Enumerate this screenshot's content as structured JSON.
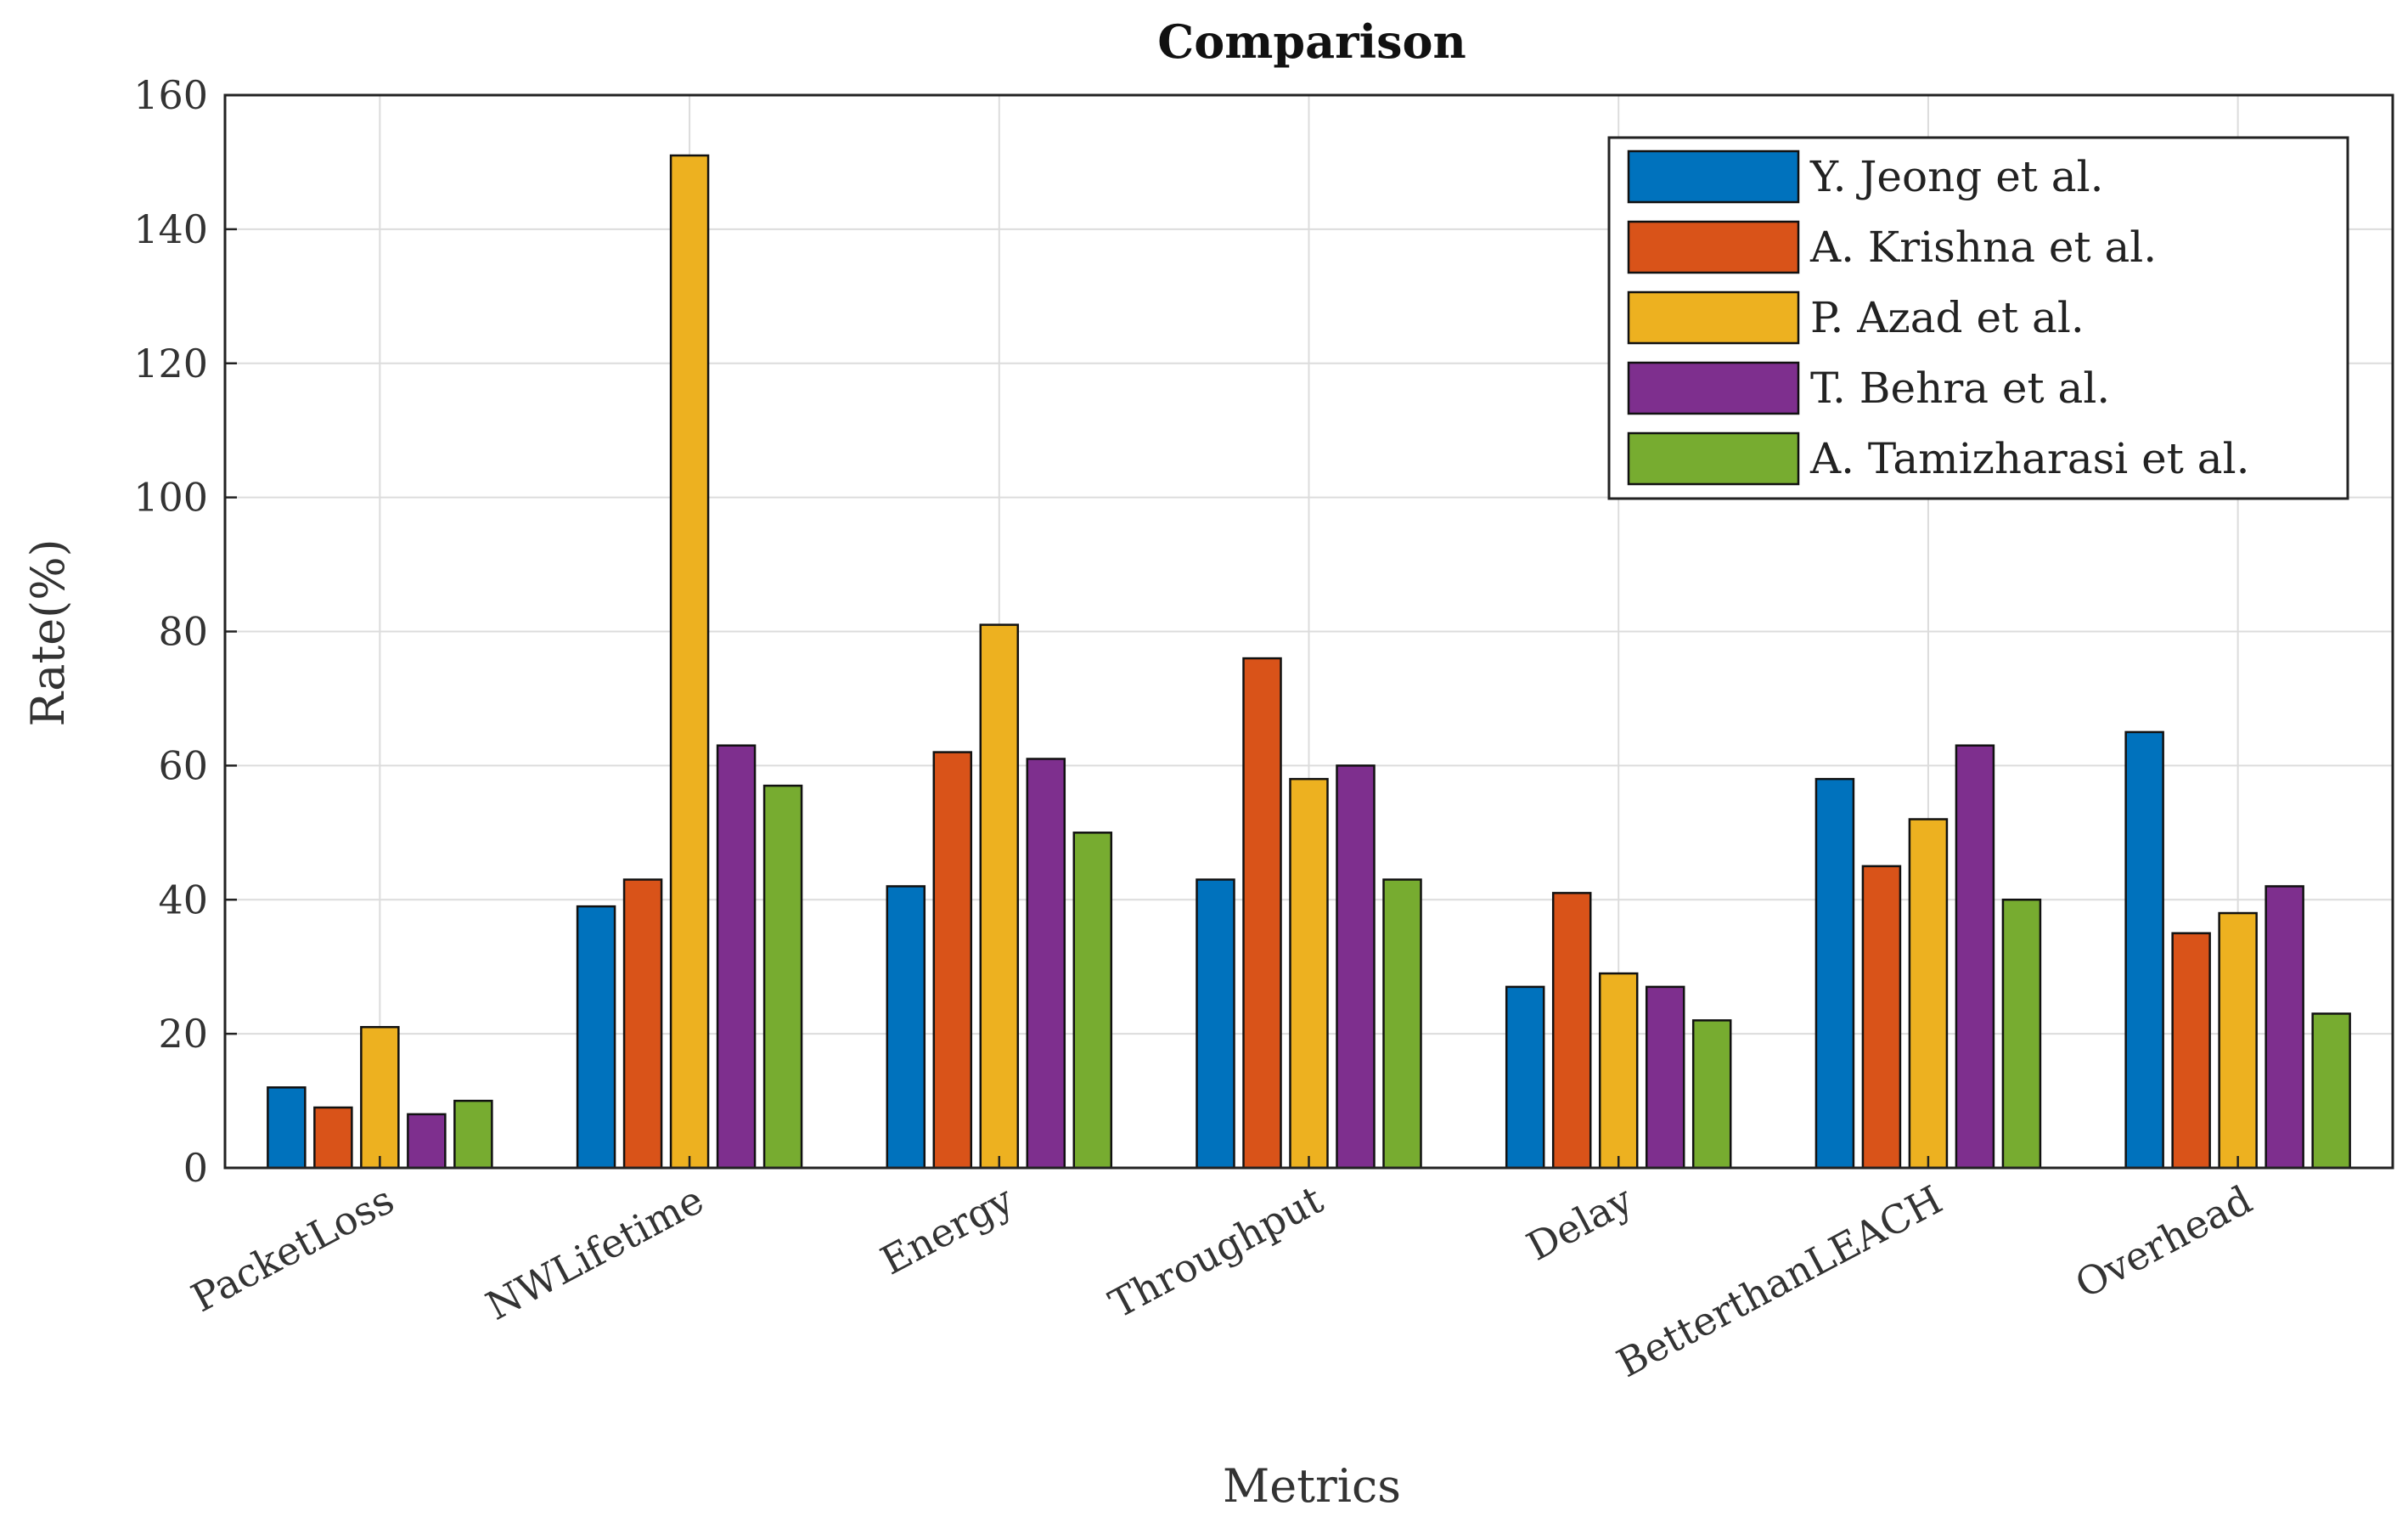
{
  "chart_data": {
    "type": "bar",
    "title": "Comparison",
    "xlabel": "Metrics",
    "ylabel": "Rate(%)",
    "ylim": [
      0,
      160
    ],
    "yticks": [
      0,
      20,
      40,
      60,
      80,
      100,
      120,
      140,
      160
    ],
    "grid": true,
    "legend_position": "top-right",
    "categories": [
      "PacketLoss",
      "NWLifetime",
      "Energy",
      "Throughput",
      "Delay",
      "BetterthanLEACH",
      "Overhead"
    ],
    "series": [
      {
        "name": "Y. Jeong et al.",
        "color": "#0072BD",
        "values": [
          12,
          39,
          42,
          43,
          27,
          58,
          65
        ]
      },
      {
        "name": "A. Krishna et al.",
        "color": "#D95319",
        "values": [
          9,
          43,
          62,
          76,
          41,
          45,
          35
        ]
      },
      {
        "name": "P. Azad et al.",
        "color": "#EDB120",
        "values": [
          21,
          151,
          81,
          58,
          29,
          52,
          38
        ]
      },
      {
        "name": "T. Behra et al.",
        "color": "#7E2F8E",
        "values": [
          8,
          63,
          61,
          60,
          27,
          63,
          42
        ]
      },
      {
        "name": "A. Tamizharasi et al.",
        "color": "#77AC30",
        "values": [
          10,
          57,
          50,
          43,
          22,
          40,
          23
        ]
      }
    ]
  }
}
